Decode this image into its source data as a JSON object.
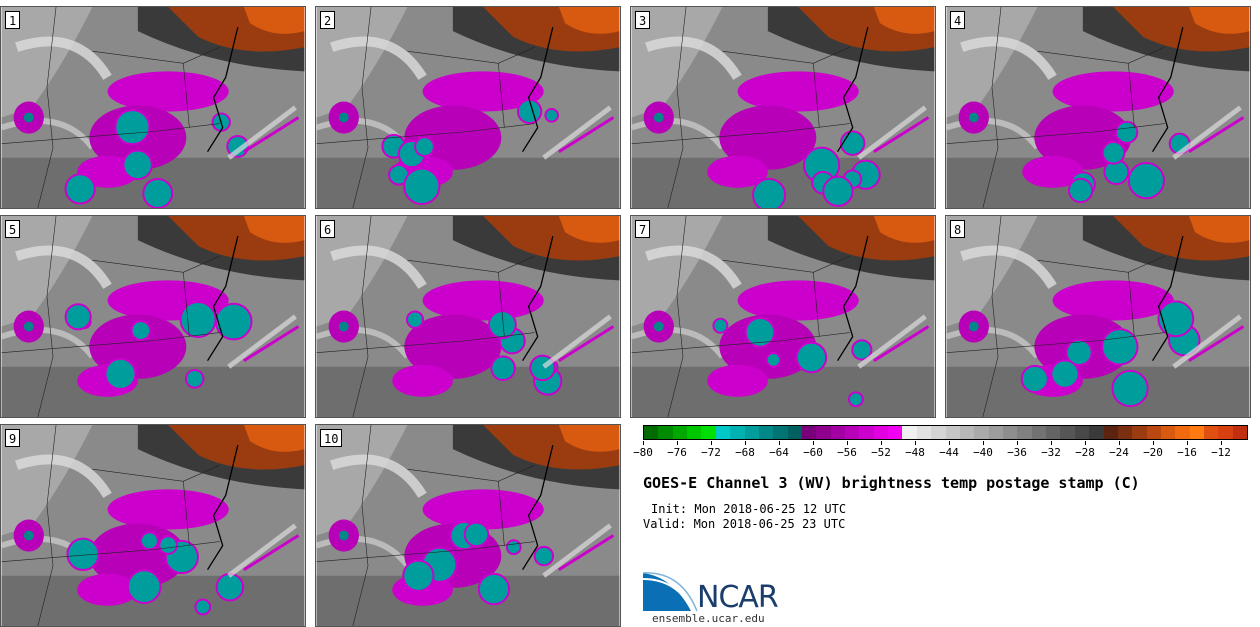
{
  "stamps": [
    "1",
    "2",
    "3",
    "4",
    "5",
    "6",
    "7",
    "8",
    "9",
    "10"
  ],
  "colorbar": {
    "ticks": [
      "−80",
      "−76",
      "−72",
      "−68",
      "−64",
      "−60",
      "−56",
      "−52",
      "−48",
      "−44",
      "−40",
      "−36",
      "−32",
      "−28",
      "−24",
      "−20",
      "−16",
      "−12"
    ],
    "min": -80,
    "max": -10,
    "colors": [
      "#006b00",
      "#008a00",
      "#00a800",
      "#00c600",
      "#00e000",
      "#00c8c8",
      "#00b2b2",
      "#009d9d",
      "#008888",
      "#007373",
      "#005f5f",
      "#7a007a",
      "#8f008f",
      "#a300a3",
      "#b800b8",
      "#cc00cc",
      "#e000e0",
      "#f200f2",
      "#f0f0f0",
      "#e2e2e2",
      "#d4d4d4",
      "#c6c6c6",
      "#b8b8b8",
      "#aaaaaa",
      "#9c9c9c",
      "#8e8e8e",
      "#808080",
      "#727272",
      "#646464",
      "#565656",
      "#484848",
      "#3a3a3a",
      "#5a2410",
      "#7a3010",
      "#9a3c10",
      "#ba4810",
      "#d85a10",
      "#f06a10",
      "#ff7a10",
      "#e05010",
      "#d84010",
      "#c03010"
    ]
  },
  "title": "GOES-E Channel 3 (WV) brightness temp postage stamp (C)",
  "init": "Init: Mon 2018-06-25 12 UTC",
  "valid": "Valid: Mon 2018-06-25 23 UTC",
  "logo": {
    "text": "NCAR",
    "site": "ensemble.ucar.edu"
  }
}
